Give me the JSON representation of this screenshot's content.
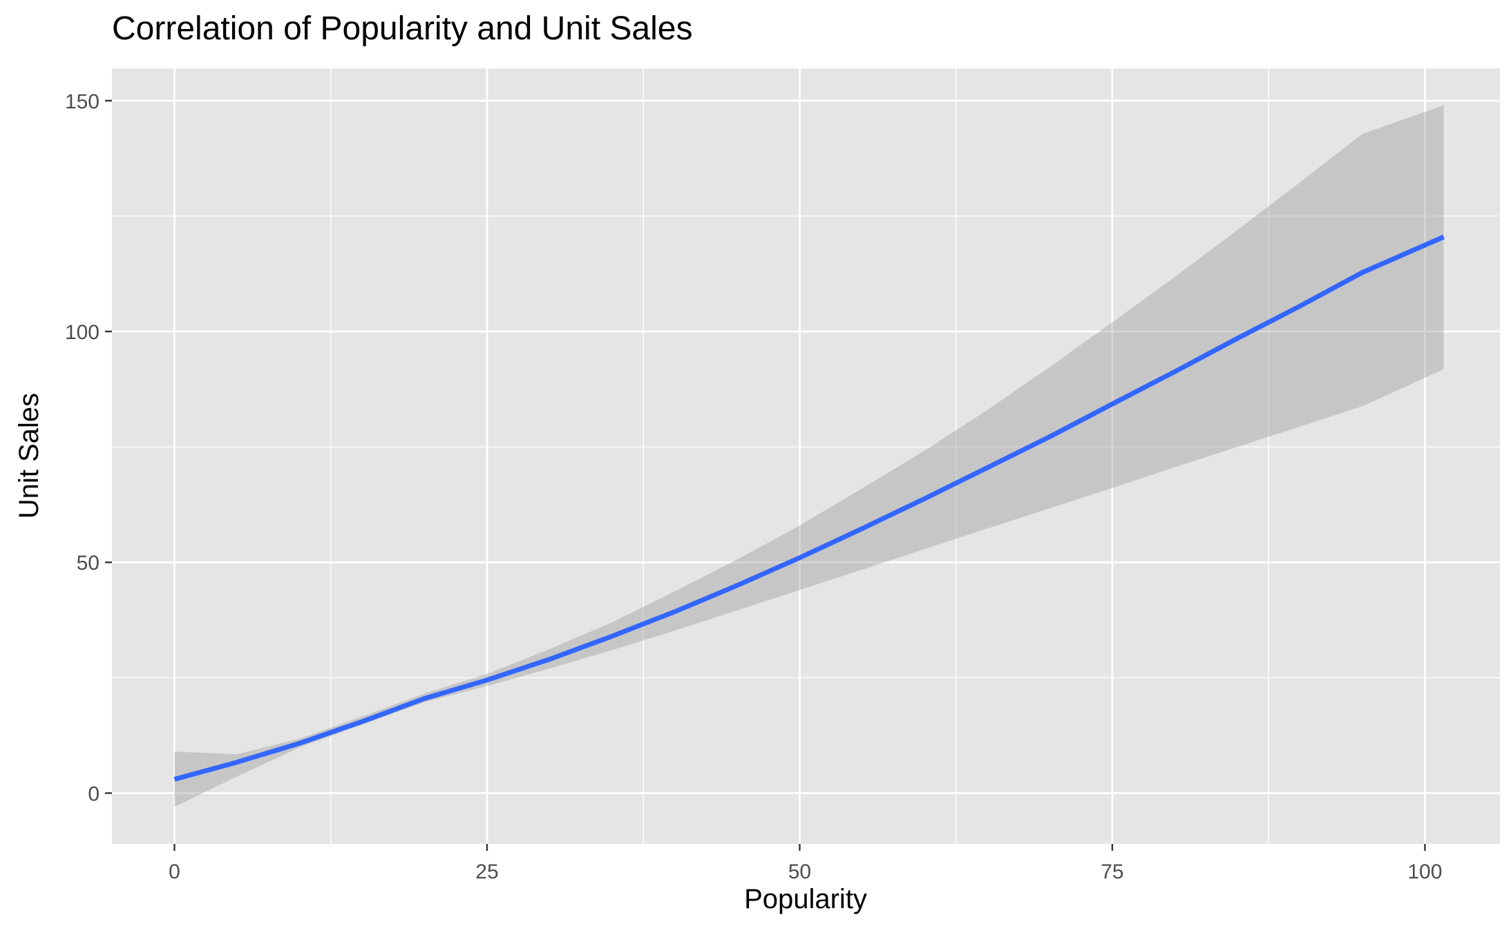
{
  "chart_data": {
    "type": "line",
    "title": "Correlation of Popularity and Unit Sales",
    "xlabel": "Popularity",
    "ylabel": "Unit Sales",
    "xlim": [
      -5,
      106
    ],
    "ylim": [
      -11,
      157
    ],
    "x_ticks": [
      0,
      25,
      50,
      75,
      100
    ],
    "x_tick_labels": [
      "0",
      "25",
      "50",
      "75",
      "100"
    ],
    "y_ticks": [
      0,
      50,
      100,
      150
    ],
    "y_tick_labels": [
      "0",
      "50",
      "100",
      "150"
    ],
    "x_minor_grid": [
      12.5,
      37.5,
      62.5,
      87.5
    ],
    "y_minor_grid": [
      25,
      75,
      125
    ],
    "grid": true,
    "legend": "none",
    "colors": {
      "panel_background": "#e5e5e5",
      "grid": "#ffffff",
      "line": "#3366ff",
      "ribbon": "#999999"
    },
    "series": [
      {
        "type": "smooth",
        "x": [
          0,
          5,
          10,
          15,
          20,
          25,
          30,
          35,
          40,
          45,
          50,
          55,
          60,
          65,
          70,
          75,
          80,
          85,
          90,
          95,
          101.5
        ],
        "y": [
          3.0,
          6.7,
          10.8,
          15.5,
          20.5,
          24.5,
          29.0,
          34.0,
          39.3,
          45.0,
          51.0,
          57.3,
          63.8,
          70.5,
          77.2,
          84.3,
          91.3,
          98.5,
          105.5,
          112.8,
          120.5
        ],
        "ymin": [
          -3.0,
          3.6,
          9.9,
          14.8,
          19.7,
          23.2,
          27.0,
          31.0,
          35.2,
          39.6,
          44.0,
          48.4,
          52.9,
          57.3,
          61.7,
          66.1,
          70.6,
          75.0,
          79.4,
          83.8,
          91.8
        ],
        "ymax": [
          9.0,
          8.4,
          11.8,
          16.6,
          21.6,
          25.8,
          31.2,
          37.0,
          43.7,
          50.6,
          58.0,
          66.0,
          74.2,
          83.0,
          92.3,
          102.0,
          111.8,
          122.0,
          132.3,
          142.8,
          149.0
        ]
      }
    ]
  }
}
